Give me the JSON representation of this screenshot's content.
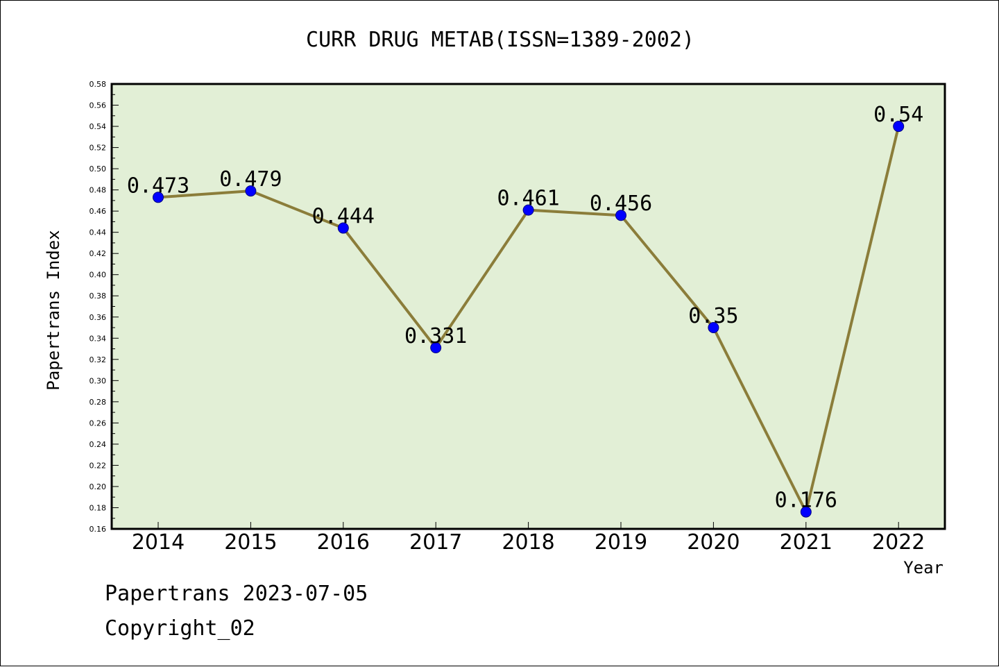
{
  "chart_data": {
    "type": "line",
    "title": "CURR DRUG METAB(ISSN=1389-2002)",
    "xlabel": "Year",
    "ylabel": "Papertrans Index",
    "categories": [
      "2014",
      "2015",
      "2016",
      "2017",
      "2018",
      "2019",
      "2020",
      "2021",
      "2022"
    ],
    "values": [
      0.473,
      0.479,
      0.444,
      0.331,
      0.461,
      0.456,
      0.35,
      0.176,
      0.54
    ],
    "data_labels": [
      "0.473",
      "0.479",
      "0.444",
      "0.331",
      "0.461",
      "0.456",
      "0.35",
      "0.176",
      "0.54"
    ],
    "ylim": [
      0.16,
      0.58
    ],
    "yticks": [
      "0.16",
      "0.18",
      "0.20",
      "0.22",
      "0.24",
      "0.26",
      "0.28",
      "0.30",
      "0.32",
      "0.34",
      "0.36",
      "0.38",
      "0.40",
      "0.42",
      "0.44",
      "0.46",
      "0.48",
      "0.50",
      "0.52",
      "0.54",
      "0.56",
      "0.58"
    ],
    "grid": false,
    "colors": {
      "plot_background": "#e2efd6",
      "line": "#8b7d3a",
      "marker": "#0000ff"
    }
  },
  "footer": {
    "date_line": "Papertrans 2023-07-05",
    "copyright": "Copyright_02"
  }
}
